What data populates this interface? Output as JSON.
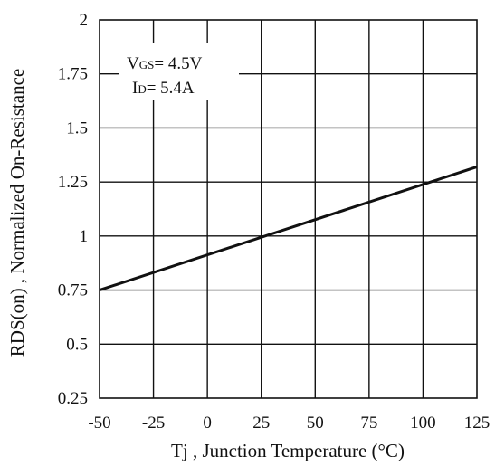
{
  "chart_data": {
    "type": "line",
    "title": "",
    "xlabel": "Tj , Junction Temperature (°C)",
    "ylabel": "RDS(on) , Normalized On-Resistance",
    "xlim": [
      -50,
      125
    ],
    "ylim": [
      0.25,
      2
    ],
    "xticks": [
      -50,
      -25,
      0,
      25,
      50,
      75,
      100,
      125
    ],
    "xtick_labels": [
      "-50",
      "-25",
      "0",
      "25",
      "50",
      "75",
      "100",
      "125"
    ],
    "yticks": [
      0.25,
      0.5,
      0.75,
      1,
      1.25,
      1.5,
      1.75,
      2
    ],
    "ytick_labels": [
      "0.25",
      "0.5",
      "0.75",
      "1",
      "1.25",
      "1.5",
      "1.75",
      "2"
    ],
    "grid": true,
    "series": [
      {
        "x": [
          -50,
          125
        ],
        "y": [
          0.75,
          1.32
        ]
      }
    ],
    "annotations": [
      {
        "main": "V",
        "sub": "GS",
        "value": "= 4.5V"
      },
      {
        "main": "I",
        "sub": "D",
        "value": "= 5.4A"
      }
    ],
    "colors": {
      "line": "#111111",
      "grid": "#111111",
      "background": "#ffffff"
    }
  }
}
